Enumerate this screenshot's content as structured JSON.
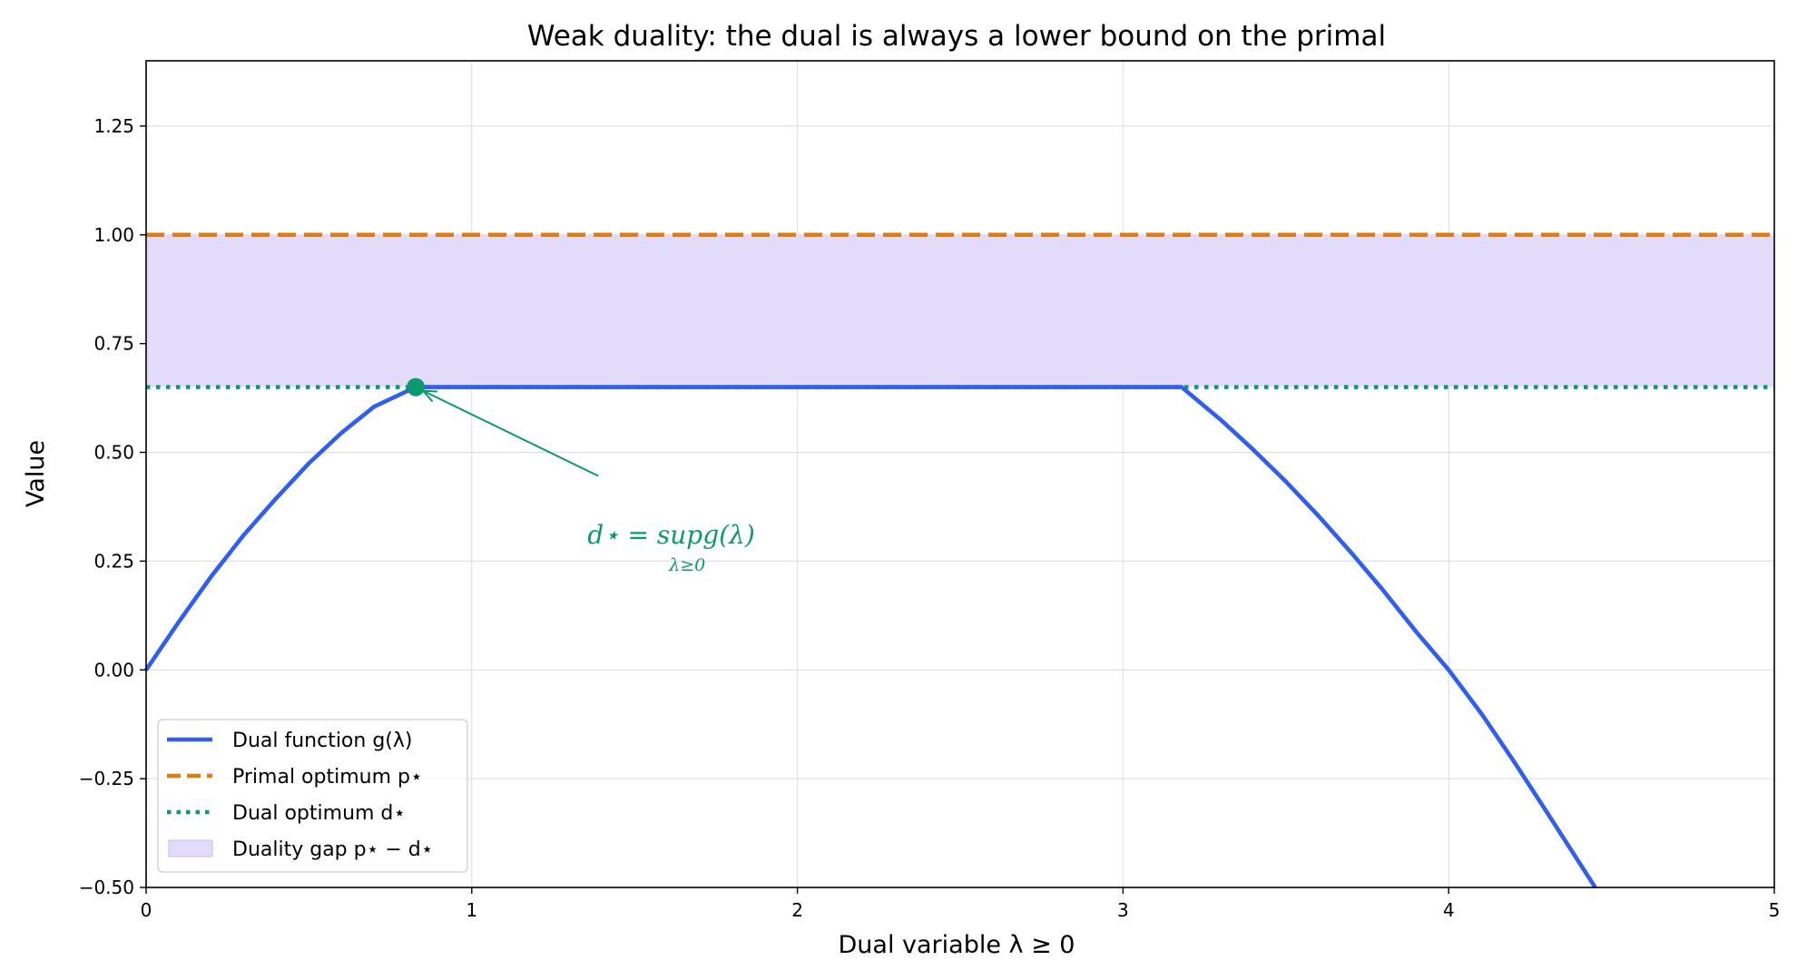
{
  "chart_data": {
    "type": "line",
    "title": "Weak duality: the dual is always a lower bound on the primal",
    "xlabel": "Dual variable λ ≥ 0",
    "ylabel": "Value",
    "xlim": [
      0,
      5
    ],
    "ylim": [
      -0.5,
      1.4
    ],
    "x_ticks": [
      0,
      1,
      2,
      3,
      4,
      5
    ],
    "y_ticks": [
      -0.5,
      -0.25,
      0.0,
      0.25,
      0.5,
      0.75,
      1.0,
      1.25
    ],
    "x_tick_labels": [
      "0",
      "1",
      "2",
      "3",
      "4",
      "5"
    ],
    "y_tick_labels": [
      "−0.50",
      "−0.25",
      "0.00",
      "0.25",
      "0.50",
      "0.75",
      "1.00",
      "1.25"
    ],
    "grid": true,
    "legend_position": "lower-left",
    "series": [
      {
        "name": "Dual function g(λ)",
        "style": "solid",
        "color": "#2f5ef0",
        "x": [
          0,
          0.1,
          0.2,
          0.3,
          0.4,
          0.5,
          0.6,
          0.7,
          0.828,
          1.0,
          1.5,
          2.0,
          2.5,
          3.0,
          3.18,
          3.3,
          3.4,
          3.5,
          3.6,
          3.7,
          3.8,
          3.9,
          4.0,
          4.1,
          4.2,
          4.3,
          4.45
        ],
        "y": [
          0,
          0.11,
          0.215,
          0.31,
          0.395,
          0.475,
          0.545,
          0.605,
          0.65,
          0.65,
          0.65,
          0.65,
          0.65,
          0.65,
          0.65,
          0.575,
          0.506,
          0.433,
          0.354,
          0.27,
          0.182,
          0.088,
          0.0,
          -0.1,
          -0.21,
          -0.325,
          -0.5
        ]
      },
      {
        "name": "Primal optimum p⋆",
        "style": "dashed",
        "color": "#e07b10",
        "value": 1.0
      },
      {
        "name": "Dual optimum d⋆",
        "style": "dotted",
        "color": "#0b9a6e",
        "value": 0.65
      }
    ],
    "shaded_region": {
      "name": "Duality gap p⋆ − d⋆",
      "color": "#e3dbfa",
      "y_from": 0.65,
      "y_to": 1.0
    },
    "optimum_point": {
      "x": 0.828,
      "y": 0.65
    },
    "annotation": {
      "main": "d⋆ = supg(λ)",
      "subscript": "λ≥0",
      "x": 1.5,
      "y": 0.32,
      "color": "#0b9a6e"
    }
  },
  "legend": [
    {
      "label": "Dual function g(λ)",
      "kind": "solid",
      "color": "#2f5ef0"
    },
    {
      "label": "Primal optimum p⋆",
      "kind": "dashed",
      "color": "#e07b10"
    },
    {
      "label": "Dual optimum d⋆",
      "kind": "dotted",
      "color": "#0b9a6e"
    },
    {
      "label": "Duality gap p⋆ − d⋆",
      "kind": "patch",
      "color": "#e3dbfa"
    }
  ]
}
